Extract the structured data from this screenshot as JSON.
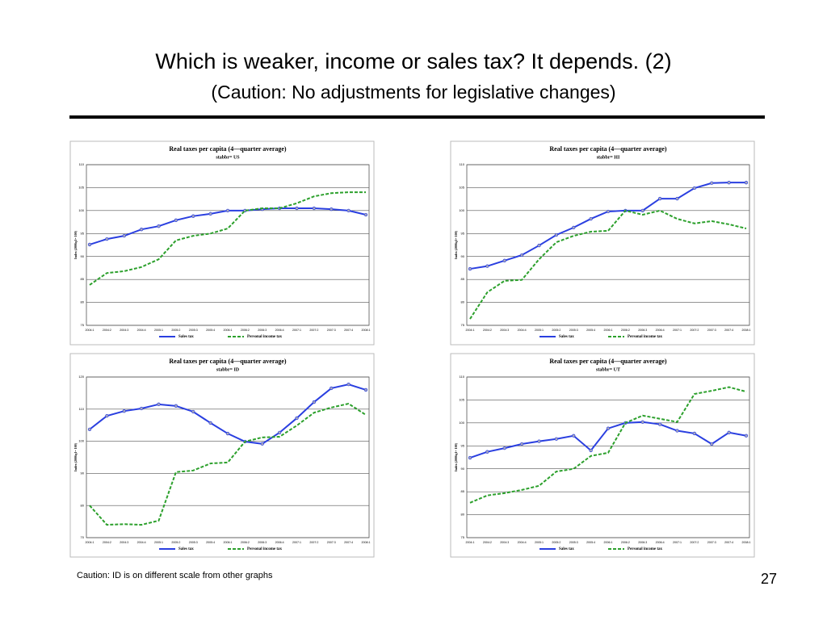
{
  "title": "Which is weaker, income or sales tax? It depends. (2)",
  "subtitle": "(Caution: No adjustments for legislative changes)",
  "note": "Caution: ID is on different scale from other graphs",
  "page_number": "27",
  "chart_data": [
    {
      "type": "line",
      "title": "Real taxes per capita (4—quarter average)",
      "subtitle": "stabbr= US",
      "y_label": "Index (2006q1= 100)",
      "categories": [
        "2004:1",
        "2004:2",
        "2004:3",
        "2004:4",
        "2005:1",
        "2005:2",
        "2005:3",
        "2005:4",
        "2006:1",
        "2006:2",
        "2006:3",
        "2006:4",
        "2007:1",
        "2007:2",
        "2007:3",
        "2007:4",
        "2008:1"
      ],
      "series": [
        {
          "name": "Sales tax",
          "color": "#2a3fe0",
          "values": [
            92.6,
            93.8,
            94.5,
            95.9,
            96.6,
            97.9,
            98.8,
            99.3,
            100,
            100,
            100.3,
            100.5,
            100.5,
            100.5,
            100.3,
            100,
            99.1
          ]
        },
        {
          "name": "Personal income tax",
          "color": "#2ca02c",
          "values": [
            83.8,
            86.4,
            86.8,
            87.7,
            89.4,
            93.5,
            94.5,
            95,
            96.1,
            100,
            100.5,
            100.5,
            101.6,
            103.1,
            103.8,
            104,
            104
          ]
        }
      ],
      "ylim": [
        75,
        110
      ],
      "yticks": [
        75,
        80,
        85,
        90,
        95,
        100,
        105,
        110
      ],
      "grid": true
    },
    {
      "type": "line",
      "title": "Real taxes per capita (4—quarter average)",
      "subtitle": "stabbr= HI",
      "y_label": "Index (2006q1= 100)",
      "categories": [
        "2004:1",
        "2004:2",
        "2004:3",
        "2004:4",
        "2005:1",
        "2005:2",
        "2005:3",
        "2005:4",
        "2006:1",
        "2006:2",
        "2006:3",
        "2006:4",
        "2007:1",
        "2007:2",
        "2007:3",
        "2007:4",
        "2008:1"
      ],
      "series": [
        {
          "name": "Sales tax",
          "color": "#2a3fe0",
          "values": [
            87.3,
            87.9,
            89.1,
            90.3,
            92.4,
            94.7,
            96.3,
            98.2,
            99.8,
            100,
            100,
            102.6,
            102.6,
            104.9,
            106,
            106.1,
            106.1
          ]
        },
        {
          "name": "Personal income tax",
          "color": "#2ca02c",
          "values": [
            76.4,
            82.2,
            84.7,
            84.9,
            89.4,
            93.1,
            94.5,
            95.4,
            95.6,
            100,
            99.1,
            100,
            98.2,
            97.2,
            97.7,
            97,
            96.1
          ]
        }
      ],
      "ylim": [
        75,
        110
      ],
      "yticks": [
        75,
        80,
        85,
        90,
        95,
        100,
        105,
        110
      ],
      "grid": true
    },
    {
      "type": "line",
      "title": "Real taxes per capita (4—quarter average)",
      "subtitle": "stabbr= ID",
      "y_label": "Index (2006q1= 100)",
      "categories": [
        "2004:1",
        "2004:2",
        "2004:3",
        "2004:4",
        "2005:1",
        "2005:2",
        "2005:3",
        "2005:4",
        "2006:1",
        "2006:2",
        "2006:3",
        "2006:4",
        "2007:1",
        "2007:2",
        "2007:3",
        "2007:4",
        "2008:1"
      ],
      "series": [
        {
          "name": "Sales tax",
          "color": "#2a3fe0",
          "values": [
            103.7,
            107.9,
            109.4,
            110.2,
            111.5,
            111,
            109.2,
            105.7,
            102.4,
            99.9,
            99.2,
            102.7,
            107.2,
            112.2,
            116.5,
            117.7,
            116
          ]
        },
        {
          "name": "Personal income tax",
          "color": "#2ca02c",
          "values": [
            80,
            74,
            74.2,
            74,
            75.3,
            90.4,
            90.9,
            93.1,
            93.4,
            99.9,
            101.2,
            101.4,
            104.9,
            108.9,
            110.5,
            111.7,
            108.2
          ]
        }
      ],
      "ylim": [
        70,
        120
      ],
      "yticks": [
        70,
        80,
        90,
        100,
        110,
        120
      ],
      "grid": true
    },
    {
      "type": "line",
      "title": "Real taxes per capita (4—quarter average)",
      "subtitle": "stabbr= UT",
      "y_label": "Index (2006q1= 100)",
      "categories": [
        "2004:1",
        "2004:2",
        "2004:3",
        "2004:4",
        "2005:1",
        "2005:2",
        "2005:3",
        "2005:4",
        "2006:1",
        "2006:2",
        "2006:3",
        "2006:4",
        "2007:1",
        "2007:2",
        "2007:3",
        "2007:4",
        "2008:1"
      ],
      "series": [
        {
          "name": "Sales tax",
          "color": "#2a3fe0",
          "values": [
            92.4,
            93.7,
            94.5,
            95.4,
            96,
            96.5,
            97.2,
            94,
            98.8,
            100,
            100.2,
            99.7,
            98.3,
            97.7,
            95.4,
            97.9,
            97.2
          ]
        },
        {
          "name": "Personal income tax",
          "color": "#2ca02c",
          "values": [
            82.6,
            84.2,
            84.7,
            85.4,
            86.3,
            89.4,
            90,
            92.8,
            93.5,
            100,
            101.6,
            100.9,
            100.2,
            106.3,
            107,
            107.8,
            106.8
          ]
        }
      ],
      "ylim": [
        75,
        110
      ],
      "yticks": [
        75,
        80,
        85,
        90,
        95,
        100,
        105,
        110
      ],
      "grid": true
    }
  ]
}
